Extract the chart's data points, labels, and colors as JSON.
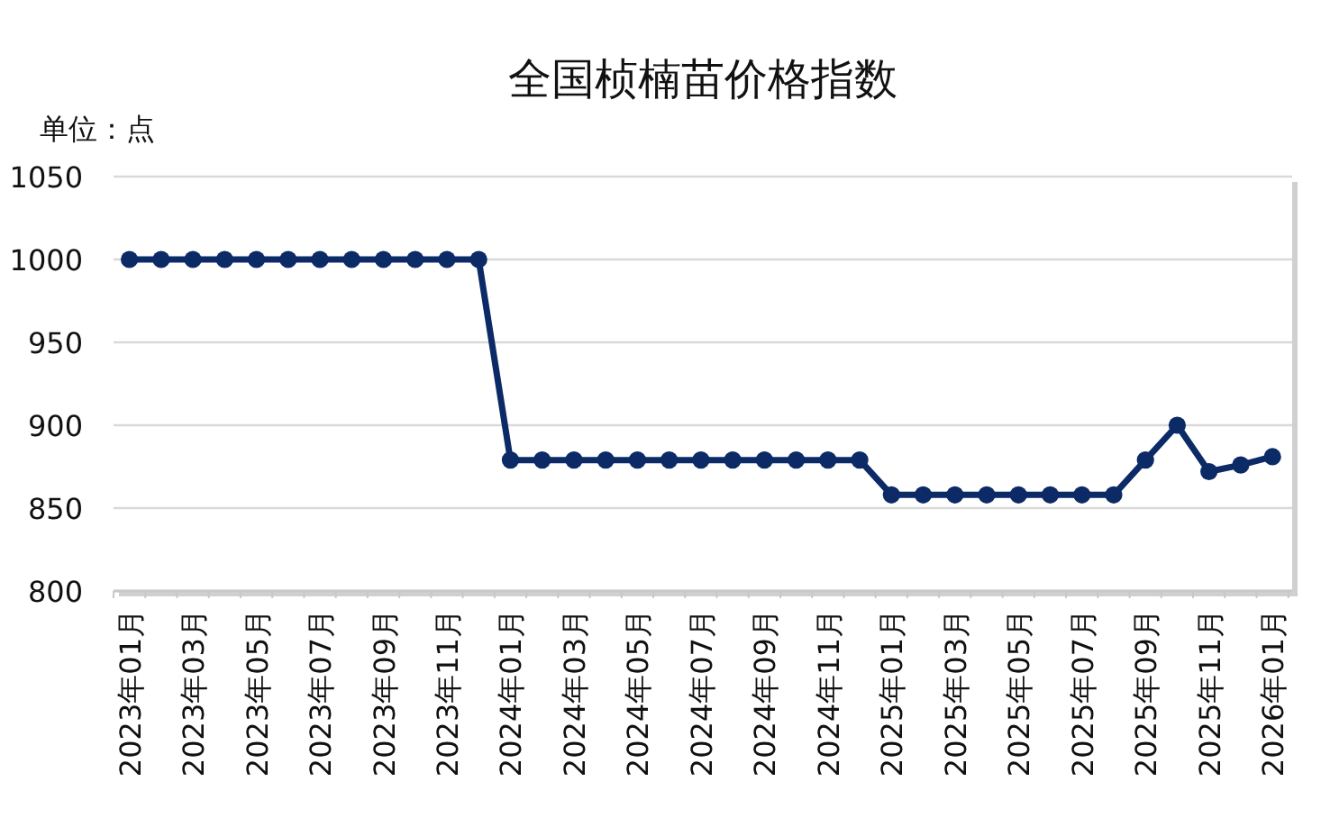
{
  "chart_data": {
    "type": "line",
    "title": "全国桢楠苗价格指数",
    "subtitle": "单位：点",
    "categories": [
      "2023年01月",
      null,
      "2023年03月",
      null,
      "2023年05月",
      null,
      "2023年07月",
      null,
      "2023年09月",
      null,
      "2023年11月",
      null,
      "2024年01月",
      null,
      "2024年03月",
      null,
      "2024年05月",
      null,
      "2024年07月",
      null,
      "2024年09月",
      null,
      "2024年11月",
      null,
      "2025年01月",
      null,
      "2025年03月",
      null,
      "2025年05月",
      null,
      "2025年07月",
      null,
      "2025年09月",
      null,
      "2025年11月",
      null,
      "2026年01月"
    ],
    "values": [
      1000,
      1000,
      1000,
      1000,
      1000,
      1000,
      1000,
      1000,
      1000,
      1000,
      1000,
      1000,
      879,
      879,
      879,
      879,
      879,
      879,
      879,
      879,
      879,
      879,
      879,
      879,
      858,
      858,
      858,
      858,
      858,
      858,
      858,
      858,
      879,
      900,
      872,
      876,
      881
    ],
    "color": "#0b2a66",
    "marker": "circle",
    "line_style": "solid",
    "grid": "y",
    "ylim": [
      800,
      1050
    ],
    "yticks": [
      800,
      850,
      900,
      950,
      1000,
      1050
    ]
  }
}
